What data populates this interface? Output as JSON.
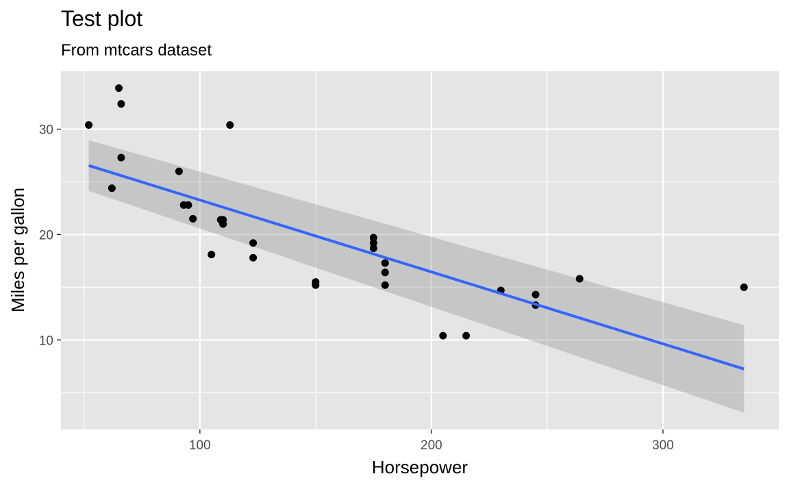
{
  "chart_data": {
    "type": "scatter",
    "title": "Test plot",
    "subtitle": "From mtcars dataset",
    "xlabel": "Horsepower",
    "ylabel": "Miles per gallon",
    "xlim": [
      40,
      350
    ],
    "ylim": [
      1.5,
      35.5
    ],
    "x_ticks": [
      100,
      200,
      300
    ],
    "x_tick_labels": [
      "100",
      "200",
      "300"
    ],
    "x_minor_ticks": [
      50,
      150,
      250
    ],
    "y_ticks": [
      10,
      20,
      30
    ],
    "y_tick_labels": [
      "10",
      "20",
      "30"
    ],
    "y_minor_ticks": [
      5,
      15,
      25
    ],
    "grid": true,
    "points": [
      {
        "x": 110,
        "y": 21.0
      },
      {
        "x": 110,
        "y": 21.0
      },
      {
        "x": 93,
        "y": 22.8
      },
      {
        "x": 110,
        "y": 21.4
      },
      {
        "x": 175,
        "y": 18.7
      },
      {
        "x": 105,
        "y": 18.1
      },
      {
        "x": 245,
        "y": 14.3
      },
      {
        "x": 62,
        "y": 24.4
      },
      {
        "x": 95,
        "y": 22.8
      },
      {
        "x": 123,
        "y": 19.2
      },
      {
        "x": 123,
        "y": 17.8
      },
      {
        "x": 180,
        "y": 16.4
      },
      {
        "x": 180,
        "y": 17.3
      },
      {
        "x": 180,
        "y": 15.2
      },
      {
        "x": 205,
        "y": 10.4
      },
      {
        "x": 215,
        "y": 10.4
      },
      {
        "x": 230,
        "y": 14.7
      },
      {
        "x": 66,
        "y": 32.4
      },
      {
        "x": 52,
        "y": 30.4
      },
      {
        "x": 65,
        "y": 33.9
      },
      {
        "x": 97,
        "y": 21.5
      },
      {
        "x": 150,
        "y": 15.5
      },
      {
        "x": 150,
        "y": 15.2
      },
      {
        "x": 245,
        "y": 13.3
      },
      {
        "x": 175,
        "y": 19.2
      },
      {
        "x": 66,
        "y": 27.3
      },
      {
        "x": 91,
        "y": 26.0
      },
      {
        "x": 113,
        "y": 30.4
      },
      {
        "x": 264,
        "y": 15.8
      },
      {
        "x": 175,
        "y": 19.7
      },
      {
        "x": 335,
        "y": 15.0
      },
      {
        "x": 109,
        "y": 21.4
      }
    ],
    "smooth": {
      "method": "lm",
      "x": [
        52,
        335
      ],
      "y": [
        26.55,
        7.24
      ],
      "ci_upper": [
        28.95,
        11.4
      ],
      "ci_lower": [
        24.15,
        3.1
      ]
    },
    "colors": {
      "panel": "#e5e5e5",
      "grid": "#ffffff",
      "point": "#000000",
      "line": "#3366ff",
      "ribbon": "#999999"
    }
  }
}
